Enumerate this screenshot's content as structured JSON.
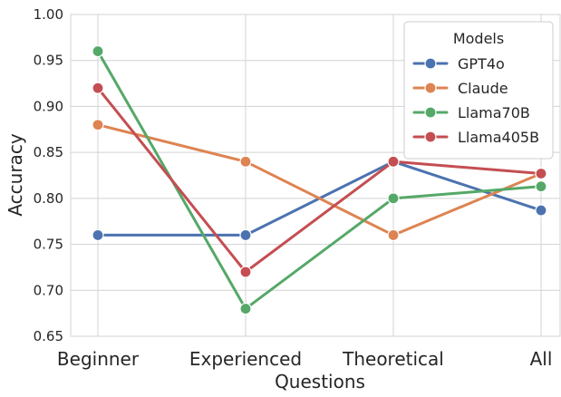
{
  "chart_data": {
    "type": "line",
    "title": "",
    "xlabel": "Questions",
    "ylabel": "Accuracy",
    "categories": [
      "Beginner",
      "Experienced",
      "Theoretical",
      "All"
    ],
    "ylim": [
      0.65,
      1.0
    ],
    "yticks": [
      "0.65",
      "0.70",
      "0.75",
      "0.80",
      "0.85",
      "0.90",
      "0.95",
      "1.00"
    ],
    "grid": true,
    "legend": {
      "title": "Models",
      "placement": "top-right"
    },
    "series": [
      {
        "name": "GPT4o",
        "color": "#4c72b0",
        "values": [
          0.76,
          0.76,
          0.84,
          0.787
        ]
      },
      {
        "name": "Claude",
        "color": "#dd8452",
        "values": [
          0.88,
          0.84,
          0.76,
          0.827
        ]
      },
      {
        "name": "Llama70B",
        "color": "#55a868",
        "values": [
          0.96,
          0.68,
          0.8,
          0.813
        ]
      },
      {
        "name": "Llama405B",
        "color": "#c44e52",
        "values": [
          0.92,
          0.72,
          0.84,
          0.827
        ]
      }
    ]
  }
}
